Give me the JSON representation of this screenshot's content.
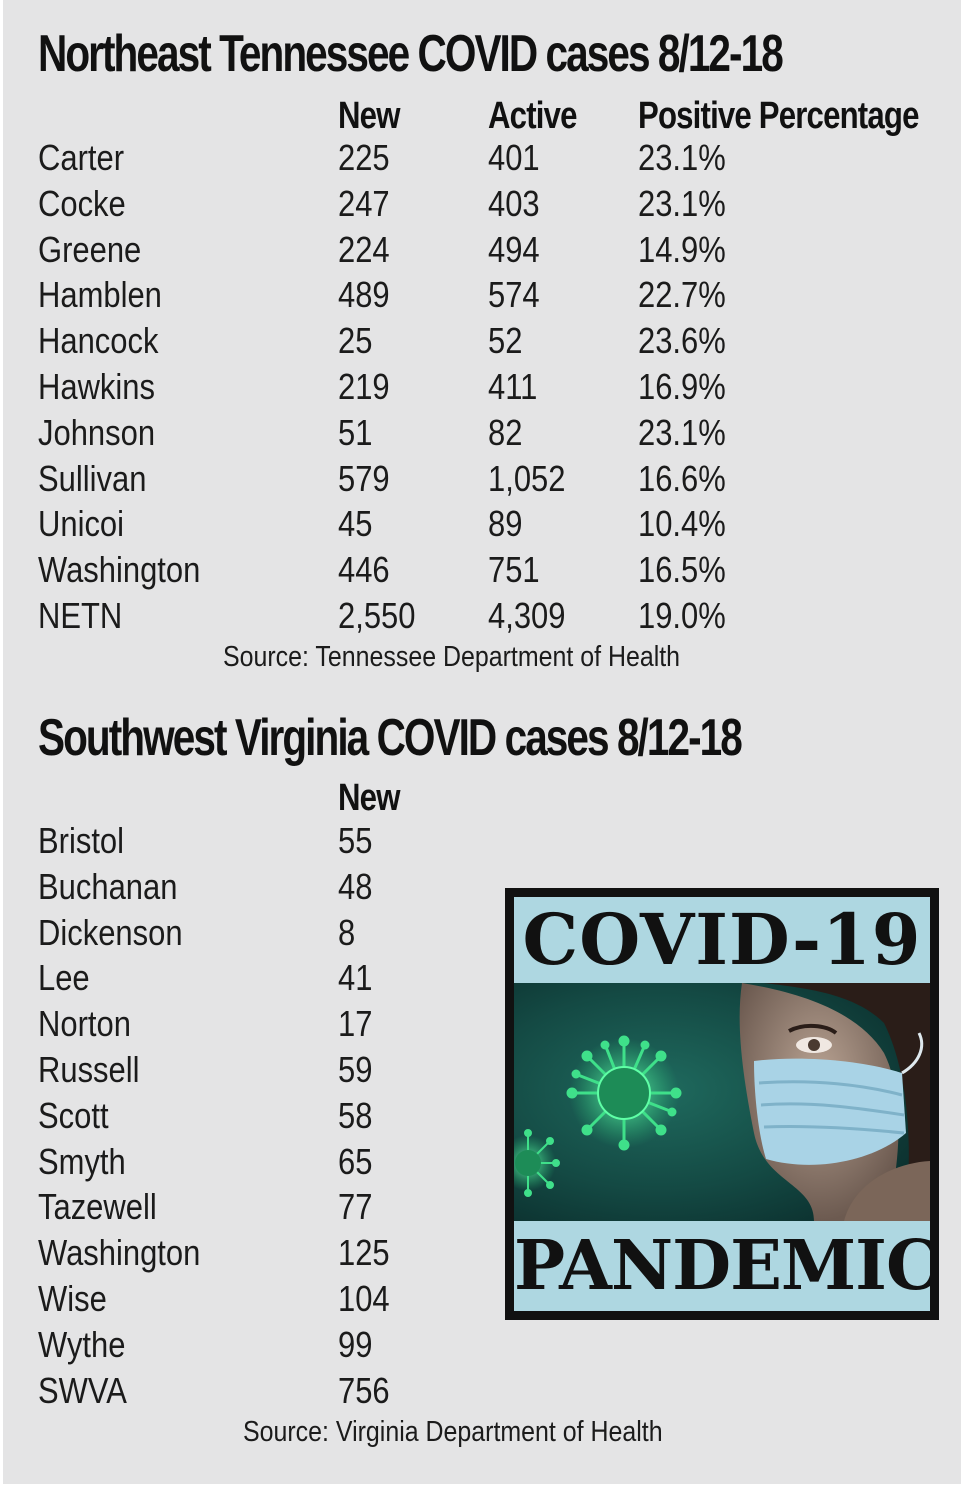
{
  "tn": {
    "title": "Northeast Tennessee COVID cases 8/12-18",
    "headers": {
      "new": "New",
      "active": "Active",
      "positive": "Positive Percentage"
    },
    "rows": [
      {
        "county": "Carter",
        "new": "225",
        "active": "401",
        "positive": "23.1%"
      },
      {
        "county": "Cocke",
        "new": "247",
        "active": "403",
        "positive": "23.1%"
      },
      {
        "county": "Greene",
        "new": "224",
        "active": "494",
        "positive": "14.9%"
      },
      {
        "county": "Hamblen",
        "new": "489",
        "active": "574",
        "positive": "22.7%"
      },
      {
        "county": "Hancock",
        "new": "25",
        "active": "52",
        "positive": "23.6%"
      },
      {
        "county": "Hawkins",
        "new": "219",
        "active": "411",
        "positive": "16.9%"
      },
      {
        "county": "Johnson",
        "new": "51",
        "active": "82",
        "positive": "23.1%"
      },
      {
        "county": "Sullivan",
        "new": "579",
        "active": "1,052",
        "positive": "16.6%"
      },
      {
        "county": "Unicoi",
        "new": "45",
        "active": "89",
        "positive": "10.4%"
      },
      {
        "county": "Washington",
        "new": "446",
        "active": "751",
        "positive": "16.5%"
      },
      {
        "county": "NETN",
        "new": "2,550",
        "active": "4,309",
        "positive": "19.0%"
      }
    ],
    "source": "Source: Tennessee Department of Health"
  },
  "va": {
    "title": "Southwest Virginia COVID cases 8/12-18",
    "headers": {
      "new": "New"
    },
    "rows": [
      {
        "county": "Bristol",
        "new": "55"
      },
      {
        "county": "Buchanan",
        "new": "48"
      },
      {
        "county": "Dickenson",
        "new": "8"
      },
      {
        "county": "Lee",
        "new": "41"
      },
      {
        "county": "Norton",
        "new": "17"
      },
      {
        "county": "Russell",
        "new": "59"
      },
      {
        "county": "Scott",
        "new": "58"
      },
      {
        "county": "Smyth",
        "new": "65"
      },
      {
        "county": "Tazewell",
        "new": "77"
      },
      {
        "county": "Washington",
        "new": "125"
      },
      {
        "county": "Wise",
        "new": "104"
      },
      {
        "county": "Wythe",
        "new": "99"
      },
      {
        "county": "SWVA",
        "new": "756"
      }
    ],
    "source": "Source: Virginia Department of Health"
  },
  "graphic": {
    "top_text": "COVID-19",
    "bottom_text": "PANDEMIC",
    "top_color": "#aed7e1",
    "virus_color": "#3fe08a"
  }
}
